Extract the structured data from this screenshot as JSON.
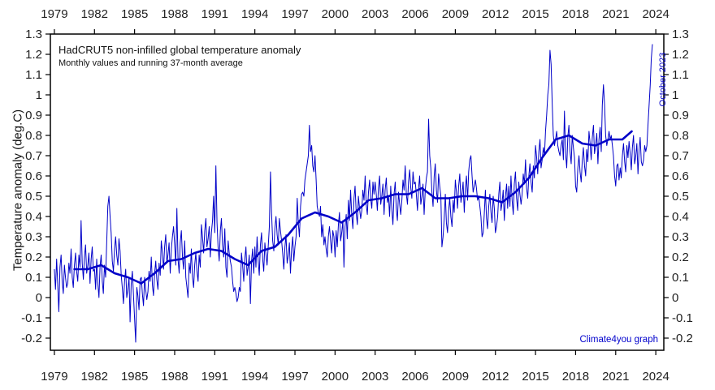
{
  "chart_data": {
    "type": "line",
    "title": "HadCRUT5 non-infilled global temperature anomaly",
    "subtitle": "Monthly values and running 37-month average",
    "ylabel": "Temperature anomaly (deg.C)",
    "xlabel": "",
    "annotation": "October 2023",
    "watermark": "Climate4you graph",
    "grid": false,
    "legend": "none (described in subtitle)",
    "xlim": [
      1978.7,
      2024.6
    ],
    "ylim": [
      -0.26,
      1.3
    ],
    "xticks": [
      1979,
      1982,
      1985,
      1988,
      1991,
      1994,
      1997,
      2000,
      2003,
      2006,
      2009,
      2012,
      2015,
      2018,
      2021,
      2024
    ],
    "yticks": [
      1.3,
      1.2,
      1.1,
      1,
      0.9,
      0.8,
      0.7,
      0.6,
      0.5,
      0.4,
      0.3,
      0.2,
      0.1,
      0,
      -0.1,
      -0.2
    ],
    "line_color": "#0000c8",
    "accent_color": "#0000cc",
    "frame_color": "#000000",
    "label_color": "#1f1f1f",
    "background_color": "#ffffff",
    "series": [
      {
        "name": "Monthly values",
        "start_year": 1979.0,
        "step_months": 1,
        "stroke_width": 1,
        "values": [
          0.14,
          0.04,
          0.19,
          0.07,
          -0.07,
          0.15,
          0.21,
          0.08,
          0.02,
          0.16,
          0.1,
          0.05,
          0.07,
          0.17,
          0.12,
          0.24,
          0.1,
          0.05,
          0.16,
          0.22,
          0.13,
          0.08,
          0.21,
          0.15,
          0.38,
          0.17,
          0.09,
          0.2,
          0.26,
          0.12,
          0.16,
          0.22,
          0.07,
          0.19,
          0.25,
          0.13,
          0.14,
          0.04,
          0.19,
          0.07,
          0.0,
          0.15,
          0.21,
          0.08,
          0.02,
          0.16,
          0.1,
          0.28,
          0.45,
          0.5,
          0.4,
          0.32,
          0.18,
          0.13,
          0.24,
          0.3,
          0.21,
          0.16,
          0.29,
          0.23,
          0.11,
          0.05,
          -0.03,
          0.08,
          0.14,
          0.0,
          0.04,
          0.1,
          -0.12,
          0.07,
          0.13,
          0.01,
          -0.1,
          -0.22,
          0.05,
          0.01,
          -0.06,
          0.09,
          0.1,
          0.02,
          -0.04,
          0.1,
          0.04,
          -0.01,
          0.03,
          0.13,
          0.08,
          0.2,
          0.06,
          0.01,
          0.12,
          0.18,
          0.09,
          0.04,
          0.17,
          0.11,
          0.28,
          0.22,
          0.14,
          0.25,
          0.31,
          0.17,
          0.21,
          0.27,
          0.12,
          0.24,
          0.3,
          0.35,
          0.26,
          0.16,
          0.44,
          0.19,
          0.12,
          0.27,
          0.33,
          0.2,
          0.14,
          0.28,
          0.1,
          0.05,
          0.0,
          0.17,
          0.12,
          0.24,
          0.1,
          0.05,
          0.16,
          0.22,
          0.13,
          0.08,
          0.21,
          0.15,
          0.36,
          0.3,
          0.22,
          0.33,
          0.39,
          0.25,
          0.29,
          0.35,
          0.2,
          0.32,
          0.38,
          0.5,
          0.32,
          0.65,
          0.37,
          0.25,
          0.18,
          0.33,
          0.39,
          0.26,
          0.2,
          0.34,
          0.15,
          0.1,
          0.28,
          0.22,
          0.18,
          0.15,
          0.08,
          0.03,
          0.05,
          0.02,
          -0.02,
          0.0,
          0.05,
          0.03,
          0.22,
          0.16,
          0.08,
          0.19,
          0.25,
          0.11,
          0.15,
          0.21,
          -0.03,
          0.18,
          0.24,
          0.12,
          0.25,
          0.15,
          0.3,
          0.18,
          0.11,
          0.26,
          0.32,
          0.19,
          0.13,
          0.27,
          0.21,
          0.16,
          0.25,
          0.35,
          0.62,
          0.42,
          0.28,
          0.23,
          0.34,
          0.4,
          0.31,
          0.26,
          0.39,
          0.33,
          0.28,
          0.22,
          0.14,
          0.25,
          0.31,
          0.17,
          0.21,
          0.27,
          0.12,
          0.24,
          0.3,
          0.18,
          0.25,
          0.3,
          0.49,
          0.37,
          0.3,
          0.45,
          0.51,
          0.52,
          0.5,
          0.58,
          0.62,
          0.66,
          0.7,
          0.85,
          0.72,
          0.75,
          0.65,
          0.62,
          0.7,
          0.58,
          0.45,
          0.42,
          0.4,
          0.45,
          0.3,
          0.36,
          0.26,
          0.3,
          0.24,
          0.2,
          0.3,
          0.35,
          0.28,
          0.22,
          0.33,
          0.3,
          0.2,
          0.33,
          0.25,
          0.36,
          0.42,
          0.28,
          0.32,
          0.38,
          0.15,
          0.35,
          0.41,
          0.29,
          0.48,
          0.38,
          0.53,
          0.41,
          0.34,
          0.49,
          0.55,
          0.42,
          0.36,
          0.5,
          0.44,
          0.39,
          0.43,
          0.53,
          0.48,
          0.6,
          0.46,
          0.41,
          0.52,
          0.58,
          0.49,
          0.44,
          0.57,
          0.51,
          0.57,
          0.51,
          0.43,
          0.54,
          0.6,
          0.46,
          0.5,
          0.56,
          0.41,
          0.53,
          0.59,
          0.47,
          0.5,
          0.4,
          0.55,
          0.43,
          0.36,
          0.51,
          0.57,
          0.44,
          0.38,
          0.52,
          0.46,
          0.41,
          0.48,
          0.58,
          0.53,
          0.65,
          0.51,
          0.46,
          0.57,
          0.63,
          0.54,
          0.49,
          0.62,
          0.56,
          0.57,
          0.51,
          0.43,
          0.54,
          0.6,
          0.46,
          0.5,
          0.56,
          0.41,
          0.53,
          0.59,
          0.62,
          0.88,
          0.7,
          0.64,
          0.52,
          0.45,
          0.6,
          0.66,
          0.53,
          0.47,
          0.61,
          0.55,
          0.5,
          0.25,
          0.3,
          0.39,
          0.51,
          0.37,
          0.32,
          0.43,
          0.49,
          0.4,
          0.35,
          0.48,
          0.42,
          0.58,
          0.52,
          0.44,
          0.55,
          0.61,
          0.47,
          0.51,
          0.57,
          0.42,
          0.54,
          0.6,
          0.48,
          0.62,
          0.68,
          0.7,
          0.6,
          0.52,
          0.55,
          0.58,
          0.54,
          0.48,
          0.5,
          0.45,
          0.4,
          0.3,
          0.32,
          0.41,
          0.53,
          0.39,
          0.34,
          0.45,
          0.51,
          0.42,
          0.37,
          0.5,
          0.44,
          0.32,
          0.35,
          0.4,
          0.51,
          0.57,
          0.43,
          0.47,
          0.53,
          0.38,
          0.5,
          0.56,
          0.44,
          0.55,
          0.45,
          0.6,
          0.48,
          0.41,
          0.56,
          0.62,
          0.49,
          0.43,
          0.57,
          0.51,
          0.46,
          0.51,
          0.61,
          0.56,
          0.68,
          0.54,
          0.49,
          0.6,
          0.66,
          0.57,
          0.52,
          0.65,
          0.59,
          0.75,
          0.69,
          0.61,
          0.72,
          0.78,
          0.64,
          0.68,
          0.74,
          0.7,
          0.82,
          0.9,
          1.0,
          1.05,
          1.22,
          1.15,
          0.95,
          0.8,
          0.75,
          0.78,
          0.82,
          0.75,
          0.72,
          0.7,
          0.75,
          0.78,
          0.68,
          0.92,
          0.71,
          0.64,
          0.79,
          0.85,
          0.72,
          0.66,
          0.8,
          0.74,
          0.69,
          0.55,
          0.52,
          0.64,
          0.7,
          0.62,
          0.57,
          0.68,
          0.74,
          0.65,
          0.6,
          0.73,
          0.67,
          0.82,
          0.76,
          0.68,
          0.79,
          0.85,
          0.71,
          0.75,
          0.81,
          0.66,
          0.78,
          0.84,
          0.72,
          0.95,
          1.05,
          0.95,
          0.8,
          0.75,
          0.78,
          0.82,
          0.78,
          0.8,
          0.75,
          0.7,
          0.6,
          0.55,
          0.65,
          0.66,
          0.58,
          0.64,
          0.59,
          0.7,
          0.76,
          0.67,
          0.62,
          0.75,
          0.69,
          0.77,
          0.71,
          0.63,
          0.74,
          0.8,
          0.66,
          0.7,
          0.76,
          0.61,
          0.73,
          0.79,
          0.67,
          0.65,
          0.68,
          0.75,
          0.72,
          0.75,
          0.85,
          0.95,
          1.05,
          1.18,
          1.25
        ]
      },
      {
        "name": "Running 37-month average",
        "stroke_width": 2.6,
        "x": [
          1980.5,
          1981.5,
          1982.5,
          1983.5,
          1984.5,
          1985.5,
          1986.5,
          1987.5,
          1988.5,
          1989.5,
          1990.5,
          1991.5,
          1992.5,
          1993.5,
          1994.5,
          1995.5,
          1996.5,
          1997.5,
          1998.5,
          1999.5,
          2000.5,
          2001.5,
          2002.5,
          2003.5,
          2004.5,
          2005.5,
          2006.5,
          2007.5,
          2008.5,
          2009.5,
          2010.5,
          2011.5,
          2012.5,
          2013.5,
          2014.5,
          2015.5,
          2016.5,
          2017.5,
          2018.5,
          2019.5,
          2020.5,
          2021.5,
          2022.2
        ],
        "values": [
          0.14,
          0.14,
          0.16,
          0.12,
          0.1,
          0.07,
          0.12,
          0.18,
          0.19,
          0.22,
          0.24,
          0.23,
          0.19,
          0.16,
          0.23,
          0.25,
          0.31,
          0.39,
          0.42,
          0.4,
          0.37,
          0.42,
          0.48,
          0.49,
          0.51,
          0.51,
          0.54,
          0.49,
          0.49,
          0.5,
          0.5,
          0.49,
          0.47,
          0.52,
          0.59,
          0.69,
          0.78,
          0.8,
          0.76,
          0.75,
          0.78,
          0.78,
          0.82
        ]
      }
    ]
  }
}
